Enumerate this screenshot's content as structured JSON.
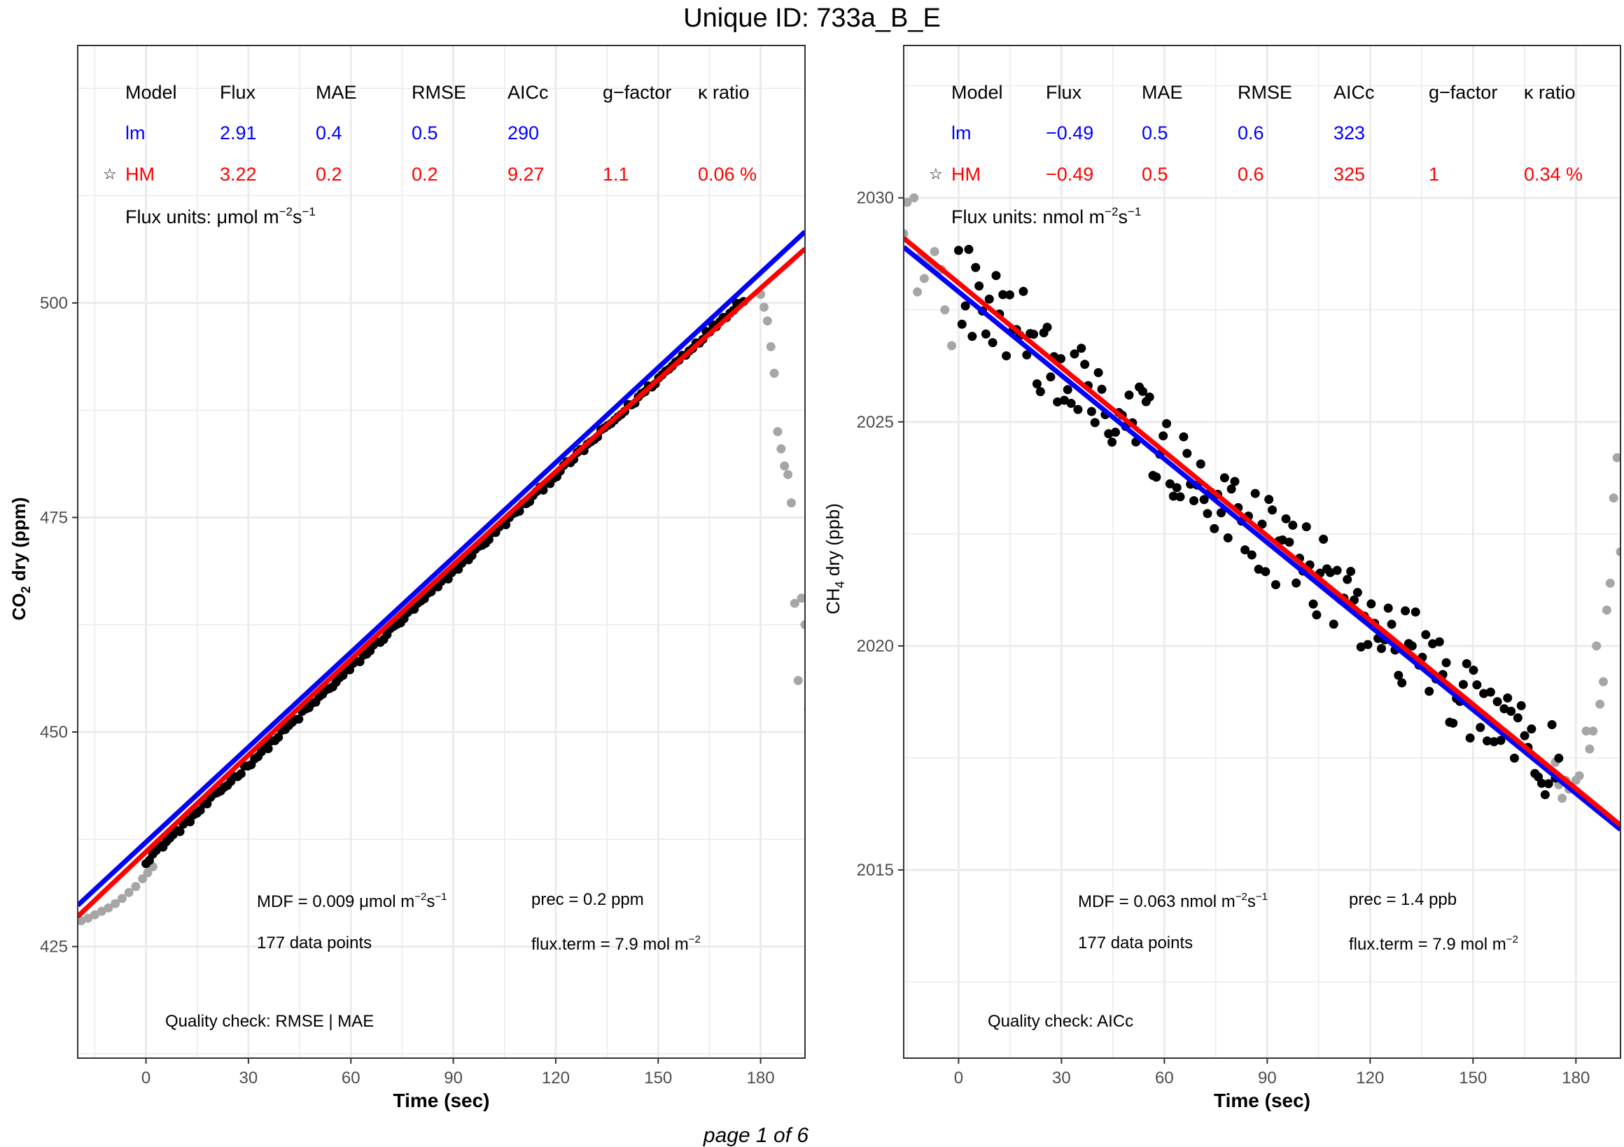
{
  "page_title": "Unique ID: 733a_B_E",
  "footer": "page 1 of 6",
  "chart_data": [
    {
      "type": "scatter",
      "panel": "left",
      "xlabel": "Time (sec)",
      "ylabel_main": "CO",
      "ylabel_sub": "2",
      "ylabel_rest": " dry (ppm)",
      "xlim": [
        -20,
        193
      ],
      "ylim": [
        412,
        530
      ],
      "x_ticks": [
        0,
        30,
        60,
        90,
        120,
        150,
        180
      ],
      "y_ticks": [
        425,
        450,
        475,
        500
      ],
      "grid": true,
      "table": {
        "headers": [
          "Model",
          "Flux",
          "MAE",
          "RMSE",
          "AICc",
          "g−factor",
          "κ ratio"
        ],
        "rows": [
          {
            "star": "",
            "model": "lm",
            "flux": "2.91",
            "mae": "0.4",
            "rmse": "0.5",
            "aicc": "290",
            "g_factor": "",
            "k_ratio": "",
            "color": "#0000ff"
          },
          {
            "star": "☆",
            "model": "HM",
            "flux": "3.22",
            "mae": "0.2",
            "rmse": "0.2",
            "aicc": "9.27",
            "g_factor": "1.1",
            "k_ratio": "0.06 %",
            "color": "#ff0000"
          }
        ],
        "flux_units_prefix": "Flux units: μmol m",
        "flux_units_exp1": "−2",
        "flux_units_mid": "s",
        "flux_units_exp2": "−1"
      },
      "mdf_prefix": "MDF = 0.009 μmol m",
      "mdf_exp1": "−2",
      "mdf_mid": "s",
      "mdf_exp2": "−1",
      "data_points": "177 data points",
      "prec": "prec = 0.2 ppm",
      "flux_term_prefix": "flux.term = 7.9 mol m",
      "flux_term_exp": "−2",
      "quality_check": "Quality check:  RMSE | MAE",
      "lm_line": {
        "x": [
          -20,
          193
        ],
        "y": [
          429.8,
          508.3
        ],
        "color": "#0000ff"
      },
      "hm_curve": {
        "x0": -20,
        "x1": 193,
        "y0": 428.5,
        "y1": 506.3,
        "bend": 0.8,
        "color": "#ff0000"
      },
      "grey_points": [
        [
          -19,
          428.0
        ],
        [
          -17,
          428.3
        ],
        [
          -15,
          428.7
        ],
        [
          -13,
          429.1
        ],
        [
          -11,
          429.5
        ],
        [
          -9,
          430.0
        ],
        [
          -7,
          430.6
        ],
        [
          -5,
          431.3
        ],
        [
          -3,
          432.0
        ],
        [
          -1,
          432.9
        ],
        [
          0.5,
          433.6
        ],
        [
          2,
          434.3
        ],
        [
          180,
          501.0
        ],
        [
          181,
          499.5
        ],
        [
          182,
          497.9
        ],
        [
          183,
          494.9
        ],
        [
          184,
          491.8
        ],
        [
          185,
          485.0
        ],
        [
          186,
          483.0
        ],
        [
          187,
          481.0
        ],
        [
          188,
          480.0
        ],
        [
          189,
          476.7
        ],
        [
          190,
          465.0
        ],
        [
          191,
          456.0
        ],
        [
          192,
          465.6
        ],
        [
          193,
          462.5
        ],
        [
          194,
          452.7
        ]
      ],
      "black_points": {
        "x_start": 0,
        "x_end": 175,
        "y_start": 435.0,
        "y_end": 500.5,
        "n": 177,
        "noise": 0.35
      }
    },
    {
      "type": "scatter",
      "panel": "right",
      "xlabel": "Time (sec)",
      "ylabel_main": "CH",
      "ylabel_sub": "4",
      "ylabel_rest": " dry (ppb)",
      "xlim": [
        -16,
        193
      ],
      "ylim": [
        2010.8,
        2033.4
      ],
      "x_ticks": [
        0,
        30,
        60,
        90,
        120,
        150,
        180
      ],
      "y_ticks": [
        2015,
        2020,
        2025,
        2030
      ],
      "grid": true,
      "table": {
        "headers": [
          "Model",
          "Flux",
          "MAE",
          "RMSE",
          "AICc",
          "g−factor",
          "κ ratio"
        ],
        "rows": [
          {
            "star": "",
            "model": "lm",
            "flux": "−0.49",
            "mae": "0.5",
            "rmse": "0.6",
            "aicc": "323",
            "g_factor": "",
            "k_ratio": "",
            "color": "#0000ff"
          },
          {
            "star": "☆",
            "model": "HM",
            "flux": "−0.49",
            "mae": "0.5",
            "rmse": "0.6",
            "aicc": "325",
            "g_factor": "1",
            "k_ratio": "0.34 %",
            "color": "#ff0000"
          }
        ],
        "flux_units_prefix": "Flux units: nmol m",
        "flux_units_exp1": "−2",
        "flux_units_mid": "s",
        "flux_units_exp2": "−1"
      },
      "mdf_prefix": "MDF = 0.063 nmol m",
      "mdf_exp1": "−2",
      "mdf_mid": "s",
      "mdf_exp2": "−1",
      "data_points": "177 data points",
      "prec": "prec = 1.4 ppb",
      "flux_term_prefix": "flux.term = 7.9 mol m",
      "flux_term_exp": "−2",
      "quality_check": "Quality check:  AICc",
      "lm_line": {
        "x": [
          -16,
          193
        ],
        "y": [
          2028.9,
          2015.9
        ],
        "color": "#0000ff"
      },
      "hm_curve": {
        "x0": -16,
        "x1": 193,
        "y0": 2029.1,
        "y1": 2016.0,
        "bend": 0.0,
        "color": "#ff0000"
      },
      "grey_points": [
        [
          -16,
          2029.2
        ],
        [
          -15,
          2029.9
        ],
        [
          -13,
          2030.0
        ],
        [
          -12,
          2027.9
        ],
        [
          -11,
          2028.7
        ],
        [
          -10,
          2028.2
        ],
        [
          -9,
          2028.6
        ],
        [
          -8,
          2028.5
        ],
        [
          -7,
          2028.8
        ],
        [
          -6,
          2028.4
        ],
        [
          -5,
          2028.4
        ],
        [
          -4,
          2027.5
        ],
        [
          -2,
          2026.7
        ],
        [
          174,
          2017.4
        ],
        [
          175,
          2016.9
        ],
        [
          176,
          2016.6
        ],
        [
          177,
          2017.0
        ],
        [
          178,
          2016.8
        ],
        [
          180,
          2017.0
        ],
        [
          181,
          2017.1
        ],
        [
          183,
          2018.1
        ],
        [
          184,
          2017.7
        ],
        [
          185,
          2018.1
        ],
        [
          186,
          2020.0
        ],
        [
          187,
          2018.7
        ],
        [
          188,
          2019.2
        ],
        [
          189,
          2020.8
        ],
        [
          190,
          2021.4
        ],
        [
          191,
          2023.3
        ],
        [
          192,
          2024.2
        ],
        [
          193,
          2022.1
        ]
      ],
      "black_points": {
        "x_start": 0,
        "x_end": 175,
        "y_start": 2028.1,
        "y_end": 2017.2,
        "n": 177,
        "noise": 0.55
      }
    }
  ]
}
